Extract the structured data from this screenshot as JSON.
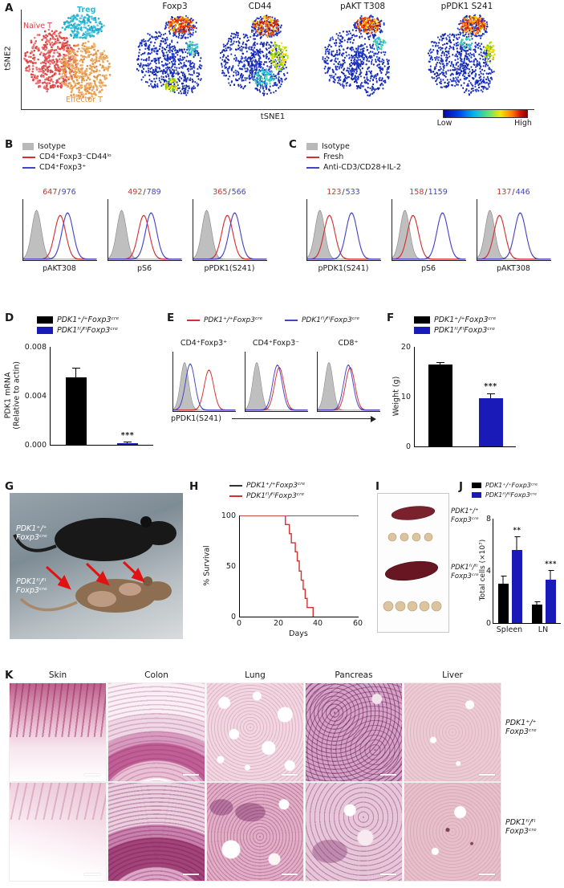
{
  "misc": {
    "slash": "/"
  },
  "panelA": {
    "label": "A",
    "ylabel": "tSNE2",
    "xlabel": "tSNE1",
    "clusters": [
      {
        "name": "Naïve T",
        "color": "#d94343"
      },
      {
        "name": "Treg",
        "color": "#2fb9d6"
      },
      {
        "name": "Effector T",
        "color": "#e19140"
      }
    ],
    "maps": [
      "Foxp3",
      "CD44",
      "pAKT T308",
      "pPDK1 S241"
    ],
    "colorbar": {
      "low": "Low",
      "high": "High"
    }
  },
  "panelB": {
    "label": "B",
    "legend": [
      {
        "label": "Isotype",
        "color": "#b9b9b9"
      },
      {
        "label": "CD4⁺Foxp3⁻CD44ˡᵒ",
        "color": "#d43030"
      },
      {
        "label": "CD4⁺Foxp3⁺",
        "color": "#4343c8"
      }
    ],
    "plots": [
      {
        "name": "pAKT308",
        "mfi_red": "647",
        "mfi_blue": "976",
        "peaks": {
          "gray": 0.18,
          "red": 0.5,
          "blue": 0.6
        }
      },
      {
        "name": "pS6",
        "mfi_red": "492",
        "mfi_blue": "789",
        "peaks": {
          "gray": 0.18,
          "red": 0.48,
          "blue": 0.58
        }
      },
      {
        "name": "pPDK1(S241)",
        "mfi_red": "365",
        "mfi_blue": "566",
        "peaks": {
          "gray": 0.18,
          "red": 0.46,
          "blue": 0.56
        }
      }
    ]
  },
  "panelC": {
    "label": "C",
    "legend": [
      {
        "label": "Isotype",
        "color": "#b9b9b9"
      },
      {
        "label": "Fresh",
        "color": "#d43030"
      },
      {
        "label": "Anti-CD3/CD28+IL-2",
        "color": "#4343c8"
      }
    ],
    "plots": [
      {
        "name": "pPDK1(S241)",
        "mfi_red": "123",
        "mfi_blue": "533",
        "peaks": {
          "gray": 0.17,
          "red": 0.3,
          "blue": 0.6
        }
      },
      {
        "name": "pS6",
        "mfi_red": "158",
        "mfi_blue": "1159",
        "peaks": {
          "gray": 0.17,
          "red": 0.28,
          "blue": 0.68
        }
      },
      {
        "name": "pAKT308",
        "mfi_red": "137",
        "mfi_blue": "446",
        "peaks": {
          "gray": 0.17,
          "red": 0.3,
          "blue": 0.58
        }
      }
    ]
  },
  "panelD": {
    "label": "D",
    "legend": [
      {
        "label": "PDK1⁺/⁺Foxp3ᶜʳᵉ",
        "color": "#000000"
      },
      {
        "label": "PDK1ᶠˡ/ᶠˡFoxp3ᶜʳᵉ",
        "color": "#1a1ab8"
      }
    ]
  },
  "panelE": {
    "label": "E",
    "legend": [
      {
        "label": "PDK1⁺/⁺Foxp3ᶜʳᵉ",
        "color": "#d43030"
      },
      {
        "label": "PDK1ᶠˡ/ᶠˡFoxp3ᶜʳᵉ",
        "color": "#4343c8"
      }
    ],
    "plots": [
      {
        "name": "CD4⁺Foxp3⁺",
        "peaks": {
          "gray": 0.18,
          "blue": 0.27,
          "red": 0.57,
          "blueh": 0.92,
          "redh": 0.8
        }
      },
      {
        "name": "CD4⁺Foxp3⁻",
        "peaks": {
          "gray": 0.18,
          "red": 0.54,
          "blue": 0.51
        }
      },
      {
        "name": "CD8⁺",
        "peaks": {
          "gray": 0.18,
          "red": 0.52,
          "blue": 0.49
        }
      }
    ],
    "xlabel": "pPDK1(S241)"
  },
  "panelF": {
    "label": "F",
    "legend": [
      {
        "label": "PDK1⁺/⁺Foxp3ᶜʳᵉ",
        "color": "#000000"
      },
      {
        "label": "PDK1ᶠˡ/ᶠˡFoxp3ᶜʳᵉ",
        "color": "#1a1ab8"
      }
    ]
  },
  "panelG": {
    "label": "G",
    "mouse_labels": [
      "PDK1⁺/⁺\nFoxp3ᶜʳᵉ",
      "PDK1ᶠˡ/ᶠˡ\nFoxp3ᶜʳᵉ"
    ]
  },
  "panelH": {
    "label": "H",
    "legend": [
      {
        "label": "PDK1⁺/⁺Foxp3ᶜʳᵉ",
        "color": "#333333"
      },
      {
        "label": "PDK1ᶠˡ/ᶠˡFoxp3ᶜʳᵉ",
        "color": "#d43030"
      }
    ]
  },
  "panelI": {
    "label": "I",
    "labels": [
      "PDK1⁺/⁺\nFoxp3ᶜʳᵉ",
      "PDK1ᶠˡ/ᶠˡ\nFoxp3ᶜʳᵉ"
    ]
  },
  "panelJ": {
    "label": "J",
    "legend": [
      {
        "label": "PDK1⁺/⁺Foxp3ᶜʳᵉ",
        "color": "#000000"
      },
      {
        "label": "PDK1ᶠˡ/ᶠˡFoxp3ᶜʳᵉ",
        "color": "#1a1ab8"
      }
    ]
  },
  "panelK": {
    "label": "K",
    "columns": [
      "Skin",
      "Colon",
      "Lung",
      "Pancreas",
      "Liver"
    ],
    "row_labels": [
      "PDK1⁺/⁺\nFoxp3ᶜʳᵉ",
      "PDK1ᶠˡ/ᶠˡ\nFoxp3ᶜʳᵉ"
    ]
  },
  "chart_data": [
    {
      "id": "D",
      "type": "bar",
      "panel": "D",
      "ylabel": "PDK1 mRNA\n(Relative to actin)",
      "ylim": [
        0,
        0.008
      ],
      "yticks": [
        "0.008",
        "0.004",
        "0.000"
      ],
      "categories": [
        "PDK1+/+Foxp3Cre",
        "PDK1fl/flFoxp3Cre"
      ],
      "values": [
        0.0055,
        0.0001
      ],
      "errors": [
        0.0007,
        8e-05
      ],
      "colors": [
        "#000000",
        "#1a1ab8"
      ],
      "sig": "***"
    },
    {
      "id": "F",
      "type": "bar",
      "panel": "F",
      "ylabel": "Weight (g)",
      "ylim": [
        0,
        20
      ],
      "yticks": [
        "20",
        "10",
        "0"
      ],
      "categories": [
        "PDK1+/+Foxp3cre",
        "PDK1fl/flFoxp3Cre"
      ],
      "values": [
        16.4,
        9.7
      ],
      "errors": [
        0.4,
        0.8
      ],
      "colors": [
        "#000000",
        "#1a1ab8"
      ],
      "sig": "***"
    },
    {
      "id": "H",
      "type": "line",
      "panel": "H",
      "ylabel": "% Survival",
      "xlabel": "Days",
      "ylim": [
        0,
        100
      ],
      "xlim": [
        0,
        60
      ],
      "yticks": [
        "100",
        "50",
        "0"
      ],
      "xticks": [
        "0",
        "20",
        "40",
        "60"
      ],
      "series": [
        {
          "name": "PDK1+/+Foxp3cre",
          "color": "#333333",
          "points": [
            [
              0,
              100
            ],
            [
              60,
              100
            ]
          ]
        },
        {
          "name": "PDK1fl/flFoxp3cre",
          "color": "#d43030",
          "points": [
            [
              0,
              100
            ],
            [
              21,
              100
            ],
            [
              23,
              91
            ],
            [
              25,
              82
            ],
            [
              26,
              73
            ],
            [
              28,
              64
            ],
            [
              29,
              55
            ],
            [
              30,
              45
            ],
            [
              31,
              36
            ],
            [
              32,
              27
            ],
            [
              33,
              18
            ],
            [
              34,
              9
            ],
            [
              36,
              9
            ],
            [
              37,
              0
            ]
          ]
        }
      ]
    },
    {
      "id": "J",
      "type": "bar",
      "panel": "J",
      "ylabel": "Total cells (×10⁷)",
      "ylim": [
        0,
        8
      ],
      "yticks": [
        "8",
        "4",
        "0"
      ],
      "categories": [
        "Spleen",
        "LN"
      ],
      "series": [
        {
          "name": "PDK1+/+Foxp3cre",
          "color": "#000000",
          "values": [
            3.0,
            1.4
          ],
          "errors": [
            0.6,
            0.2
          ]
        },
        {
          "name": "PDK1fl/flFoxp3cre",
          "color": "#1a1ab8",
          "values": [
            5.6,
            3.3
          ],
          "errors": [
            1.0,
            0.7
          ]
        }
      ],
      "sigs": [
        "**",
        "***"
      ]
    }
  ]
}
